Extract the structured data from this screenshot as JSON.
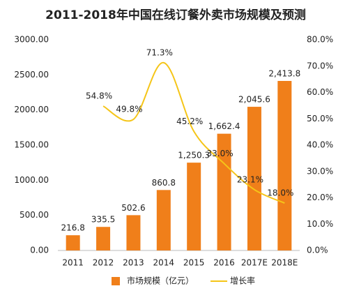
{
  "chart_data": {
    "type": "bar",
    "title": "2011-2018年中国在线订餐外卖市场规模及预测",
    "categories": [
      "2011",
      "2012",
      "2013",
      "2014",
      "2015",
      "2016",
      "2017E",
      "2018E"
    ],
    "series": [
      {
        "name": "市场规模（亿元）",
        "type": "bar",
        "color": "#f07f1a",
        "values": [
          216.8,
          335.5,
          502.6,
          860.8,
          1250.3,
          1662.4,
          2045.6,
          2413.8
        ],
        "value_labels": [
          "216.8",
          "335.5",
          "502.6",
          "860.8",
          "1,250.3",
          "1,662.4",
          "2,045.6",
          "2,413.8"
        ]
      },
      {
        "name": "增长率",
        "type": "line",
        "axis": "y2",
        "color": "#f5c518",
        "values": [
          null,
          54.8,
          49.8,
          71.3,
          45.2,
          33.0,
          23.1,
          18.0
        ],
        "value_labels": [
          null,
          "54.8%",
          "49.8%",
          "71.3%",
          "45.2%",
          "33.0%",
          "23.1%",
          "18.0%"
        ]
      }
    ],
    "ylim": [
      0,
      3000
    ],
    "yticks": [
      {
        "value": 0,
        "label": "0.00"
      },
      {
        "value": 500,
        "label": "500.00"
      },
      {
        "value": 1000,
        "label": "1000.00"
      },
      {
        "value": 1500,
        "label": "1500.00"
      },
      {
        "value": 2000,
        "label": "2000.00"
      },
      {
        "value": 2500,
        "label": "2500.00"
      },
      {
        "value": 3000,
        "label": "3000.00"
      }
    ],
    "y2lim": [
      0,
      80
    ],
    "y2ticks": [
      {
        "value": 0,
        "label": "0.0%"
      },
      {
        "value": 10,
        "label": "10.0%"
      },
      {
        "value": 20,
        "label": "20.0%"
      },
      {
        "value": 30,
        "label": "30.0%"
      },
      {
        "value": 40,
        "label": "40.0%"
      },
      {
        "value": 50,
        "label": "50.0%"
      },
      {
        "value": 60,
        "label": "60.0%"
      },
      {
        "value": 70,
        "label": "70.0%"
      },
      {
        "value": 80,
        "label": "80.0%"
      }
    ],
    "legend": "bottom"
  }
}
